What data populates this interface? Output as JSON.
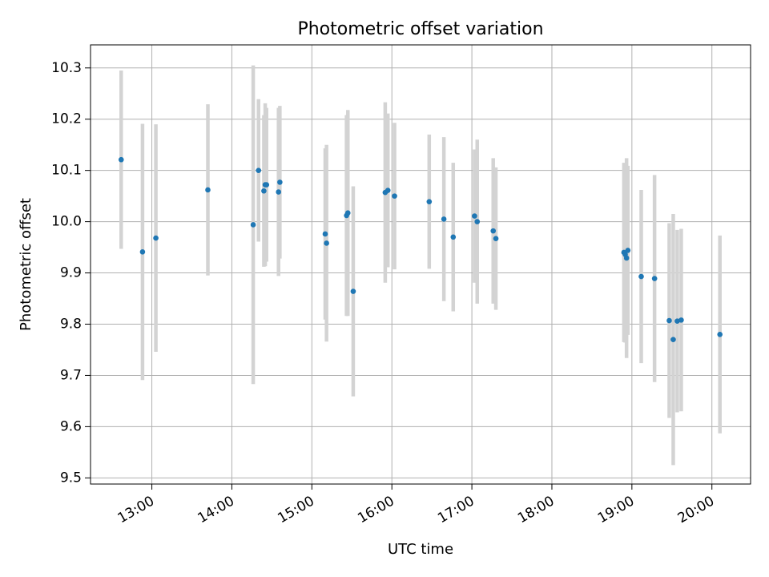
{
  "chart_data": {
    "type": "scatter",
    "title": "Photometric offset variation",
    "xlabel": "UTC time",
    "ylabel": "Photometric offset",
    "x_axis_type": "time",
    "x_ticks": [
      "13:00",
      "14:00",
      "15:00",
      "16:00",
      "17:00",
      "18:00",
      "19:00",
      "20:00"
    ],
    "y_ticks": [
      "9.5",
      "9.6",
      "9.7",
      "9.8",
      "9.9",
      "10.0",
      "10.1",
      "10.2",
      "10.3"
    ],
    "xlim": [
      "12:14",
      "20:29"
    ],
    "ylim": [
      9.488,
      10.345
    ],
    "grid": true,
    "legend": "none",
    "colors": {
      "points": "#1f77b4",
      "error_bars": "#d3d3d3",
      "grid": "#b0b0b0"
    },
    "points": [
      {
        "x": "12:37",
        "y": 10.121,
        "err": 0.174
      },
      {
        "x": "12:53",
        "y": 9.941,
        "err": 0.25
      },
      {
        "x": "13:03",
        "y": 9.968,
        "err": 0.222
      },
      {
        "x": "13:42",
        "y": 10.062,
        "err": 0.167
      },
      {
        "x": "14:16",
        "y": 9.994,
        "err": 0.311
      },
      {
        "x": "14:20",
        "y": 10.1,
        "err": 0.139
      },
      {
        "x": "14:24",
        "y": 10.06,
        "err": 0.148
      },
      {
        "x": "14:25",
        "y": 10.072,
        "err": 0.159
      },
      {
        "x": "14:26",
        "y": 10.072,
        "err": 0.15
      },
      {
        "x": "14:35",
        "y": 10.058,
        "err": 0.164
      },
      {
        "x": "14:36",
        "y": 10.077,
        "err": 0.149
      },
      {
        "x": "15:10",
        "y": 9.976,
        "err": 0.167
      },
      {
        "x": "15:11",
        "y": 9.958,
        "err": 0.192
      },
      {
        "x": "15:26",
        "y": 10.012,
        "err": 0.196
      },
      {
        "x": "15:27",
        "y": 10.017,
        "err": 0.201
      },
      {
        "x": "15:31",
        "y": 9.864,
        "err": 0.205
      },
      {
        "x": "15:55",
        "y": 10.057,
        "err": 0.176
      },
      {
        "x": "15:57",
        "y": 10.061,
        "err": 0.15
      },
      {
        "x": "16:02",
        "y": 10.05,
        "err": 0.143
      },
      {
        "x": "16:28",
        "y": 10.039,
        "err": 0.131
      },
      {
        "x": "16:39",
        "y": 10.005,
        "err": 0.16
      },
      {
        "x": "16:46",
        "y": 9.97,
        "err": 0.145
      },
      {
        "x": "17:02",
        "y": 10.011,
        "err": 0.13
      },
      {
        "x": "17:04",
        "y": 10.0,
        "err": 0.16
      },
      {
        "x": "17:16",
        "y": 9.982,
        "err": 0.142
      },
      {
        "x": "17:18",
        "y": 9.967,
        "err": 0.139
      },
      {
        "x": "18:54",
        "y": 9.94,
        "err": 0.175
      },
      {
        "x": "18:55",
        "y": 9.936,
        "err": 0.172
      },
      {
        "x": "18:56",
        "y": 9.929,
        "err": 0.195
      },
      {
        "x": "18:57",
        "y": 9.944,
        "err": 0.165
      },
      {
        "x": "19:07",
        "y": 9.893,
        "err": 0.169
      },
      {
        "x": "19:17",
        "y": 9.889,
        "err": 0.202
      },
      {
        "x": "19:28",
        "y": 9.807,
        "err": 0.19
      },
      {
        "x": "19:31",
        "y": 9.77,
        "err": 0.245
      },
      {
        "x": "19:34",
        "y": 9.806,
        "err": 0.178
      },
      {
        "x": "19:37",
        "y": 9.808,
        "err": 0.178
      },
      {
        "x": "20:06",
        "y": 9.78,
        "err": 0.193
      }
    ]
  }
}
